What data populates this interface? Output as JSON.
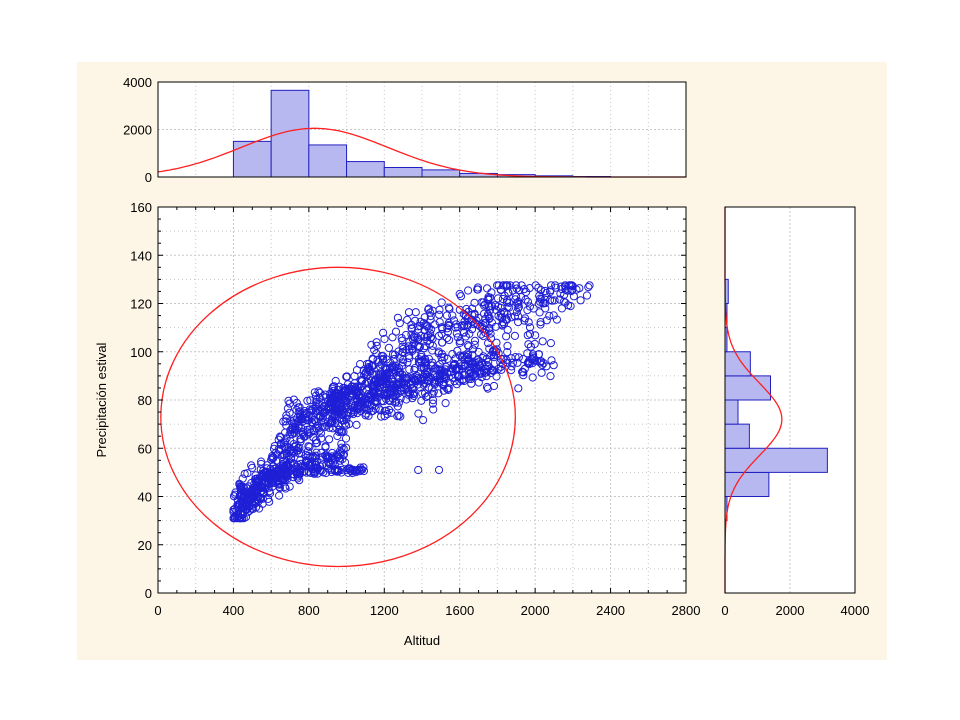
{
  "colors": {
    "background_panel": "#fdf6e6",
    "plot_bg": "#ffffff",
    "grid": "#c8c8c8",
    "frame": "#000000",
    "marker": "#1f1fd6",
    "hist_fill": "#b8b8f0",
    "hist_stroke": "#2020c0",
    "fit_curve": "#ff2020"
  },
  "chart_data": {
    "type": "scatter",
    "xlabel": "Altitud",
    "ylabel": "Precipitación estival",
    "xlim": [
      0,
      2800
    ],
    "ylim": [
      0,
      160
    ],
    "x_ticks": [
      "0",
      "400",
      "800",
      "1200",
      "1600",
      "2000",
      "2400",
      "2800"
    ],
    "y_ticks": [
      "0",
      "20",
      "40",
      "60",
      "80",
      "100",
      "120",
      "140",
      "160"
    ],
    "grid": true,
    "marker": "open-circle",
    "confidence_ellipse": {
      "center": [
        955,
        73
      ],
      "x_semi_axis": 940,
      "y_semi_axis": 62
    },
    "points_description": "dense cloud rising from about (400,32) to about (2300,127); outliers near (1380,51) and (1490,51)",
    "outlier_points": [
      {
        "x": 1380,
        "y": 51
      },
      {
        "x": 1490,
        "y": 51
      }
    ],
    "top_histogram": {
      "ylim": [
        0,
        4000
      ],
      "y_ticks": [
        "0",
        "2000",
        "4000"
      ],
      "bin_width": 200,
      "bins": [
        {
          "x": 400,
          "count": 1500
        },
        {
          "x": 600,
          "count": 3650
        },
        {
          "x": 800,
          "count": 1350
        },
        {
          "x": 1000,
          "count": 650
        },
        {
          "x": 1200,
          "count": 400
        },
        {
          "x": 1400,
          "count": 300
        },
        {
          "x": 1600,
          "count": 150
        },
        {
          "x": 1800,
          "count": 100
        },
        {
          "x": 2000,
          "count": 50
        },
        {
          "x": 2200,
          "count": 20
        }
      ],
      "normal_fit": {
        "mean": 830,
        "sd": 390,
        "peak": 2050
      }
    },
    "right_histogram": {
      "xlim": [
        0,
        4000
      ],
      "x_ticks": [
        "0",
        "2000",
        "4000"
      ],
      "bin_width": 10,
      "bins": [
        {
          "y": 30,
          "count": 60
        },
        {
          "y": 40,
          "count": 1350
        },
        {
          "y": 50,
          "count": 3150
        },
        {
          "y": 60,
          "count": 750
        },
        {
          "y": 70,
          "count": 400
        },
        {
          "y": 80,
          "count": 1400
        },
        {
          "y": 90,
          "count": 780
        },
        {
          "y": 100,
          "count": 60
        },
        {
          "y": 110,
          "count": 60
        },
        {
          "y": 120,
          "count": 100
        }
      ],
      "normal_fit": {
        "mean": 72,
        "sd": 15,
        "peak": 1750
      }
    }
  }
}
